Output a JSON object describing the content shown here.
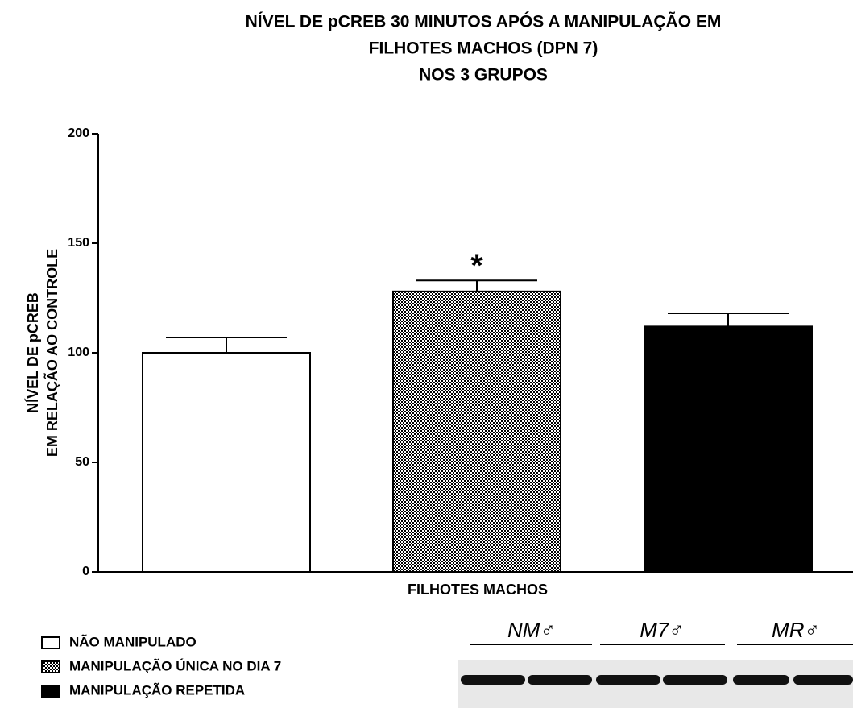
{
  "chart_data": {
    "type": "bar",
    "title": [
      "NÍVEL DE pCREB 30 MINUTOS APÓS A MANIPULAÇÃO EM",
      "FILHOTES MACHOS (DPN 7)",
      "NOS 3 GRUPOS"
    ],
    "y_label": [
      "NÍVEL DE pCREB",
      "EM RELAÇÃO AO CONTROLE"
    ],
    "categories": [
      "FILHOTES MACHOS"
    ],
    "series": [
      {
        "name": "NÃO MANIPULADO",
        "color": "#ffffff",
        "values": [
          100
        ],
        "errors": [
          7
        ]
      },
      {
        "name": "MANIPULAÇÃO ÚNICA NO DIA 7",
        "color": "#000000",
        "pattern": "checker",
        "values": [
          128
        ],
        "errors": [
          5
        ]
      },
      {
        "name": "MANIPULAÇÃO REPETIDA",
        "color": "#000000",
        "values": [
          112
        ],
        "errors": [
          6
        ]
      }
    ],
    "annotations": [
      {
        "text": "*",
        "series": 1
      }
    ],
    "ylim": [
      0,
      200
    ],
    "yticks": [
      0,
      50,
      100,
      150,
      200
    ],
    "grid": false,
    "legend": "bottom-left"
  },
  "blot": {
    "labels": [
      "NM♂",
      "M7♂",
      "MR♂"
    ]
  }
}
